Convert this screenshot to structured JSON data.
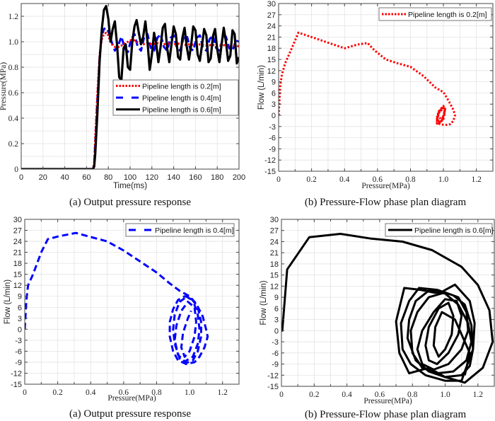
{
  "chart_data": [
    {
      "id": "a",
      "type": "line",
      "caption": "(a) Output pressure response",
      "title": "",
      "xlabel": "Time(ms)",
      "ylabel": "Pressure(MPa)",
      "xlim": [
        0,
        200
      ],
      "ylim": [
        0,
        1.3
      ],
      "xticks": [
        0,
        20,
        40,
        60,
        80,
        100,
        120,
        140,
        160,
        180,
        200
      ],
      "xtick_labels": [
        "0",
        "20",
        "40",
        "60",
        "80",
        "100",
        "120",
        "140",
        "160",
        "180",
        "200"
      ],
      "yticks": [
        0,
        0.2,
        0.4,
        0.6,
        0.8,
        1.0,
        1.2
      ],
      "ytick_labels": [
        "0",
        "0.2",
        "0.4",
        "0.6",
        "0.8",
        "1.0",
        "1.2"
      ],
      "grid": true,
      "legend_position": "center-right",
      "series": [
        {
          "name": "Pipeline length is 0.2[m]",
          "color": "#ff0000",
          "style": "dotted",
          "x": [
            0,
            66,
            67,
            68,
            70,
            72,
            74,
            76,
            78,
            80,
            82,
            84,
            86,
            88,
            90,
            92,
            94,
            96,
            98,
            100,
            102,
            104,
            106,
            108,
            110,
            112,
            114,
            116,
            118,
            120,
            125,
            130,
            135,
            140,
            145,
            150,
            155,
            160,
            165,
            170,
            175,
            180,
            185,
            190,
            195,
            200
          ],
          "y": [
            0,
            0,
            0.05,
            0.25,
            0.6,
            0.9,
            1.02,
            1.06,
            1.07,
            1.05,
            1.0,
            0.97,
            0.96,
            0.96,
            0.96,
            0.97,
            0.98,
            0.99,
            1.0,
            1.01,
            1.015,
            1.01,
            1.0,
            0.99,
            0.985,
            0.98,
            0.985,
            0.99,
            0.985,
            0.98,
            0.99,
            0.98,
            0.985,
            0.98,
            0.985,
            0.975,
            0.98,
            0.975,
            0.98,
            0.97,
            0.975,
            0.97,
            0.975,
            0.965,
            0.97,
            0.965
          ]
        },
        {
          "name": "Pipeline length is 0.4[m]",
          "color": "#0000ff",
          "style": "dashed",
          "x": [
            0,
            66,
            67,
            68,
            70,
            72,
            74,
            76,
            78,
            80,
            83,
            86,
            89,
            92,
            95,
            98,
            101,
            104,
            107,
            110,
            113,
            116,
            119,
            122,
            125,
            128,
            131,
            134,
            137,
            140,
            143,
            146,
            149,
            152,
            155,
            158,
            161,
            164,
            167,
            170,
            173,
            176,
            179,
            182,
            185,
            188,
            191,
            194,
            197,
            200
          ],
          "y": [
            0,
            0,
            0.04,
            0.2,
            0.55,
            0.88,
            1.05,
            1.1,
            1.11,
            1.08,
            1.0,
            0.93,
            0.97,
            1.04,
            0.95,
            0.92,
            1.02,
            1.06,
            0.96,
            0.93,
            1.04,
            1.06,
            0.95,
            0.93,
            1.03,
            1.06,
            0.96,
            0.93,
            1.03,
            1.05,
            0.95,
            0.93,
            1.03,
            1.05,
            0.95,
            0.93,
            1.03,
            1.05,
            0.95,
            0.93,
            1.02,
            1.05,
            0.95,
            0.93,
            1.02,
            1.04,
            0.95,
            0.93,
            1.01,
            1.0
          ]
        },
        {
          "name": "Pipeline length is 0.6[m]",
          "color": "#000000",
          "style": "solid",
          "x": [
            0,
            66,
            67,
            68,
            70,
            72,
            74,
            76,
            78,
            80,
            82,
            84,
            86,
            88,
            90,
            92,
            94,
            96,
            98,
            100,
            102,
            104,
            106,
            108,
            110,
            112,
            114,
            116,
            118,
            120,
            122,
            124,
            126,
            128,
            130,
            132,
            134,
            136,
            138,
            140,
            142,
            144,
            146,
            148,
            150,
            152,
            154,
            156,
            158,
            160,
            162,
            164,
            166,
            168,
            170,
            172,
            174,
            176,
            178,
            180,
            182,
            184,
            186,
            188,
            190,
            192,
            194,
            196,
            198,
            200
          ],
          "y": [
            0,
            0,
            0.02,
            0.12,
            0.45,
            0.85,
            1.1,
            1.25,
            1.28,
            1.18,
            1.0,
            1.1,
            1.16,
            0.98,
            0.72,
            0.7,
            0.95,
            0.98,
            0.8,
            0.78,
            1.0,
            1.12,
            1.17,
            1.07,
            0.98,
            1.04,
            1.16,
            1.0,
            0.78,
            0.9,
            1.07,
            0.98,
            0.84,
            0.96,
            1.11,
            1.14,
            0.95,
            0.84,
            0.98,
            1.12,
            1.06,
            0.88,
            0.86,
            1.03,
            1.11,
            0.96,
            0.86,
            0.97,
            1.12,
            1.09,
            0.9,
            0.85,
            0.97,
            1.1,
            1.05,
            0.84,
            0.87,
            1.04,
            1.1,
            0.94,
            0.84,
            0.98,
            1.11,
            1.0,
            0.85,
            0.89,
            1.09,
            1.06,
            0.83,
            0.88
          ]
        }
      ]
    },
    {
      "id": "b",
      "type": "line",
      "caption": "(b) Pressure-Flow phase plan diagram",
      "title": "",
      "xlabel": "Pressure(MPa)",
      "ylabel": "Flow (L/min)",
      "xlim": [
        0,
        1.3
      ],
      "ylim": [
        -15,
        30
      ],
      "xticks": [
        0,
        0.2,
        0.4,
        0.6,
        0.8,
        1.0,
        1.2
      ],
      "xtick_labels": [
        "0",
        "0.2",
        "0.4",
        "0.6",
        "0.8",
        "1.0",
        "1.2"
      ],
      "yticks": [
        -15,
        -12,
        -9,
        -6,
        -3,
        0,
        3,
        6,
        9,
        12,
        15,
        18,
        21,
        24,
        27,
        30
      ],
      "ytick_labels": [
        "-15",
        "-12",
        "-9",
        "-6",
        "-3",
        "0",
        "3",
        "6",
        "9",
        "12",
        "15",
        "18",
        "21",
        "24",
        "27",
        "30"
      ],
      "grid": true,
      "legend_position": "top-right",
      "series": [
        {
          "name": "Pipeline length is 0.2[m]",
          "color": "#ff0000",
          "style": "dotted",
          "x": [
            0,
            0.005,
            0.01,
            0.02,
            0.04,
            0.08,
            0.12,
            0.2,
            0.3,
            0.4,
            0.48,
            0.54,
            0.58,
            0.65,
            0.72,
            0.8,
            0.88,
            0.95,
            1.0,
            1.03,
            1.06,
            1.07,
            1.06,
            1.04,
            1.01,
            0.98,
            0.96,
            0.97,
            1.0,
            1.01,
            0.99,
            0.96,
            0.97,
            1.0,
            1.01,
            0.98,
            0.96,
            0.98,
            1.01,
            1.0,
            0.97,
            0.96,
            0.99,
            1.01,
            0.99,
            0.97
          ],
          "y": [
            0,
            4,
            8,
            11,
            14,
            18,
            22.2,
            21,
            19.5,
            18,
            19,
            19.4,
            17.5,
            15,
            14,
            13,
            10.5,
            7.5,
            6.2,
            4,
            1.5,
            0,
            -1.5,
            -2.4,
            -2.6,
            -2.4,
            -1.5,
            1,
            2.5,
            1.5,
            -1.5,
            -2.2,
            0.5,
            2,
            0.5,
            -2,
            -1,
            1.5,
            1.8,
            -1,
            -2.2,
            0,
            2,
            1,
            -1.5,
            0
          ]
        },
        {
          "name": "Pipeline length is 0.4[m]",
          "color": "#0000ff",
          "style": "dashed",
          "note": "Second phase diagram panel (bottom-left)",
          "x": [],
          "y": []
        }
      ]
    },
    {
      "id": "c",
      "type": "line",
      "caption": "(a) Output pressure response",
      "title": "",
      "xlabel": "Pressure(MPa)",
      "ylabel": "Flow (L/min)",
      "xlim": [
        0,
        1.3
      ],
      "ylim": [
        -15,
        30
      ],
      "xticks": [
        0,
        0.2,
        0.4,
        0.6,
        0.8,
        1.0,
        1.2
      ],
      "xtick_labels": [
        "0",
        "0.2",
        "0.4",
        "0.6",
        "0.8",
        "1.0",
        "1.2"
      ],
      "yticks": [
        -15,
        -12,
        -9,
        -6,
        -3,
        0,
        3,
        6,
        9,
        12,
        15,
        18,
        21,
        24,
        27,
        30
      ],
      "ytick_labels": [
        "-15",
        "-12",
        "-9",
        "-6",
        "-3",
        "0",
        "3",
        "6",
        "9",
        "12",
        "15",
        "18",
        "21",
        "24",
        "27",
        "30"
      ],
      "grid": true,
      "legend_position": "top-right",
      "series": [
        {
          "name": "Pipeline length is 0.4[m]",
          "color": "#0000ff",
          "style": "dashed",
          "x": [
            0,
            0.005,
            0.01,
            0.02,
            0.05,
            0.1,
            0.14,
            0.2,
            0.31,
            0.4,
            0.5,
            0.6,
            0.7,
            0.8,
            0.88,
            0.94,
            1.0,
            1.04,
            1.08,
            1.1,
            1.11,
            1.09,
            1.06,
            1.03,
            0.98,
            0.93,
            0.9,
            0.88,
            0.88,
            0.9,
            0.93,
            0.97,
            1.01,
            1.05,
            1.07,
            1.07,
            1.05,
            1.02,
            0.98,
            0.94,
            0.91,
            0.9,
            0.91,
            0.94,
            0.98,
            1.02,
            1.05,
            1.06,
            1.05,
            1.02,
            0.97,
            0.93,
            0.91,
            0.92,
            0.95,
            0.99,
            1.03,
            1.04,
            1.03,
            1.0,
            0.97,
            0.95,
            0.96,
            0.99,
            1.01
          ],
          "y": [
            0,
            4,
            8,
            12,
            15,
            21,
            24.6,
            25.3,
            26.3,
            25.2,
            24,
            21.5,
            18.5,
            15.5,
            12.5,
            10.5,
            9,
            7,
            3.5,
            0,
            -2,
            -5,
            -7.5,
            -9,
            -9.5,
            -8.5,
            -6,
            -2,
            2,
            5.5,
            8,
            9,
            8.5,
            6,
            2,
            -2,
            -6,
            -8.5,
            -9.2,
            -8,
            -4,
            0,
            4,
            7.5,
            8.8,
            8,
            4,
            0,
            -4,
            -7.5,
            -8.8,
            -7,
            -3,
            1,
            5,
            7.5,
            6,
            2,
            -2,
            -6,
            -7.5,
            -5,
            -1,
            3,
            5
          ]
        }
      ]
    },
    {
      "id": "d",
      "type": "line",
      "caption": "(b) Pressure-Flow phase plan diagram",
      "title": "",
      "xlabel": "Pressure(MPa)",
      "ylabel": "Flow (L/min)",
      "xlim": [
        0,
        1.3
      ],
      "ylim": [
        -15,
        30
      ],
      "xticks": [
        0,
        0.2,
        0.4,
        0.6,
        0.8,
        1.0,
        1.2
      ],
      "xtick_labels": [
        "0",
        "0.2",
        "0.4",
        "0.6",
        "0.8",
        "1.0",
        "1.2"
      ],
      "yticks": [
        -15,
        -12,
        -9,
        -6,
        -3,
        0,
        3,
        6,
        9,
        12,
        15,
        18,
        21,
        24,
        27,
        30
      ],
      "ytick_labels": [
        "-15",
        "-12",
        "-9",
        "-6",
        "-3",
        "0",
        "3",
        "6",
        "9",
        "12",
        "15",
        "18",
        "21",
        "24",
        "27",
        "30"
      ],
      "grid": true,
      "legend_position": "top-right",
      "series": [
        {
          "name": "Pipeline length is 0.6[m]",
          "color": "#000000",
          "style": "solid",
          "x": [
            0,
            0.005,
            0.035,
            0.17,
            0.36,
            0.55,
            0.74,
            0.92,
            1.1,
            1.2,
            1.27,
            1.29,
            1.23,
            1.12,
            1.0,
            0.9,
            0.78,
            0.72,
            0.7,
            0.75,
            0.85,
            0.96,
            1.06,
            1.15,
            1.18,
            1.17,
            1.12,
            1.1,
            1.0,
            0.88,
            0.79,
            0.74,
            0.73,
            0.78,
            0.84,
            0.95,
            1.05,
            1.12,
            1.16,
            1.17,
            1.15,
            1.1,
            1.0,
            0.9,
            0.82,
            0.77,
            0.78,
            0.82,
            0.9,
            1.0,
            1.08,
            1.14,
            1.16,
            1.13,
            1.05,
            0.95,
            0.86,
            0.8,
            0.79,
            0.83,
            0.9,
            1.0,
            1.08,
            1.13,
            1.14,
            1.1,
            1.02,
            0.93,
            0.86,
            0.83,
            0.86,
            0.93,
            1.0,
            1.07,
            1.1,
            1.08,
            1.02,
            0.95,
            0.9,
            0.88,
            0.9,
            0.96,
            1.02,
            1.05,
            1.04,
            1.0,
            0.96,
            0.93,
            0.94,
            0.98,
            1.06,
            1.15,
            1.12
          ],
          "y": [
            0,
            0,
            16.5,
            25.2,
            26.1,
            24.8,
            24,
            21.7,
            17.2,
            12.3,
            5.5,
            -3,
            -10,
            -14,
            -12.5,
            -10,
            -11.5,
            -6,
            2.5,
            11.5,
            11,
            10,
            12.4,
            8,
            2,
            -5,
            -11,
            -13.5,
            -13.5,
            -12,
            -9,
            -5,
            2,
            8,
            11.5,
            11,
            9.5,
            7,
            1.5,
            -5,
            -9.5,
            -12,
            -12.5,
            -11,
            -8,
            -2,
            3,
            8,
            10.8,
            10,
            7,
            2,
            -3,
            -8,
            -11,
            -11.5,
            -10,
            -6,
            0,
            5,
            9,
            10.3,
            9,
            5,
            0,
            -5,
            -9,
            -10.5,
            -9,
            -5,
            0,
            5,
            8.5,
            8,
            4,
            -1,
            -6,
            -9,
            -8,
            -4,
            1,
            6,
            7.5,
            4,
            -1,
            -5,
            -7,
            -4,
            1,
            5,
            3,
            -6,
            -12
          ]
        }
      ]
    }
  ]
}
